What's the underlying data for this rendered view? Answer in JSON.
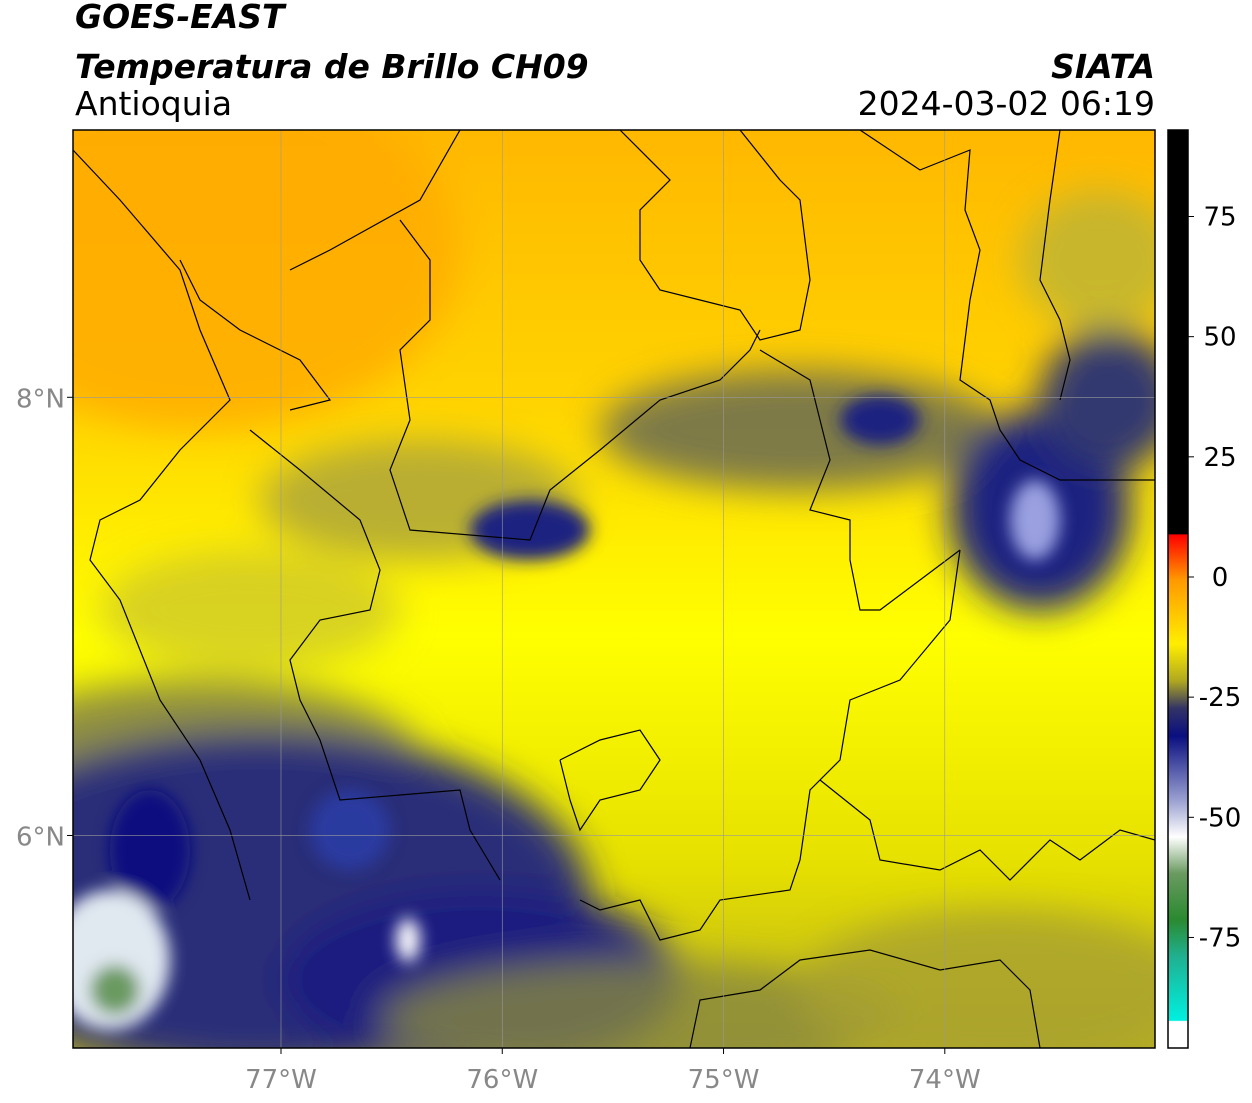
{
  "header": {
    "title": "GOES-EAST",
    "subtitle": "Temperatura de Brillo CH09",
    "region": "Antioquia",
    "source": "SIATA",
    "datetime": "2024-03-02 06:19"
  },
  "map": {
    "xlim": [
      -77.94,
      -73.05
    ],
    "ylim": [
      5.03,
      9.22
    ],
    "xticks": [
      {
        "value": -77,
        "label": "77°W"
      },
      {
        "value": -76,
        "label": "76°W"
      },
      {
        "value": -75,
        "label": "75°W"
      },
      {
        "value": -74,
        "label": "74°W"
      }
    ],
    "yticks": [
      {
        "value": 8,
        "label": "8°N"
      },
      {
        "value": 6,
        "label": "6°N"
      }
    ]
  },
  "colorbar": {
    "lim": [
      -98,
      93
    ],
    "ticks": [
      75,
      50,
      25,
      0,
      -25,
      -50,
      -75
    ]
  }
}
